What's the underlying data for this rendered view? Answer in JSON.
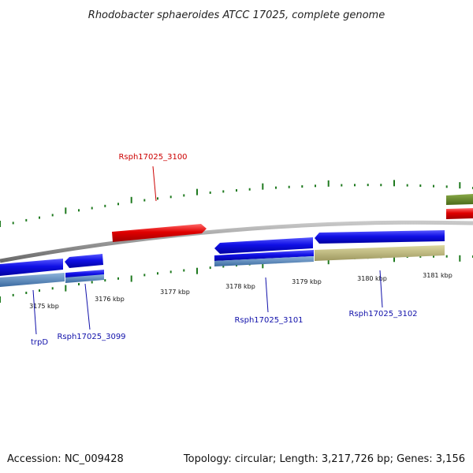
{
  "title": "Rhodobacter sphaeroides ATCC 17025, complete genome",
  "footer": {
    "accession": "Accession: NC_009428",
    "summary": "Topology: circular; Length: 3,217,726 bp; Genes: 3,156"
  },
  "colors": {
    "backbone": "#8a8a8a",
    "ticks": "#1f7a1f",
    "cds_forward": "#e00000",
    "cds_reverse": "#1010e6",
    "gene_reverse": "#4f86c0",
    "gene_other": "#b8b37a",
    "gene_forward_olive": "#6a8a2a",
    "label_forward": "#cc0000",
    "label_reverse": "#1010aa"
  },
  "scale_labels": [
    "3175 kbp",
    "3176 kbp",
    "3177 kbp",
    "3178 kbp",
    "3179 kbp",
    "3180 kbp",
    "3181 kbp"
  ],
  "genes": [
    {
      "name": "trpD",
      "strand": "reverse"
    },
    {
      "name": "Rsph17025_3099",
      "strand": "reverse"
    },
    {
      "name": "Rsph17025_3100",
      "strand": "forward"
    },
    {
      "name": "Rsph17025_3101",
      "strand": "reverse"
    },
    {
      "name": "Rsph17025_3102",
      "strand": "reverse"
    }
  ]
}
